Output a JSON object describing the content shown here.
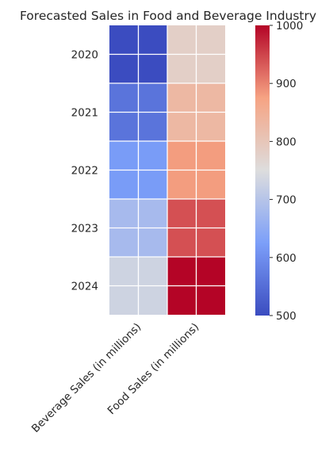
{
  "chart_data": {
    "type": "heatmap",
    "title": "Forecasted Sales in Food and Beverage Industry",
    "xlabel": "",
    "ylabel": "",
    "rows": [
      "2020",
      "2021",
      "2022",
      "2023",
      "2024"
    ],
    "columns": [
      "Beverage Sales (in millions)",
      "Food Sales (in millions)"
    ],
    "values": [
      [
        500,
        780
      ],
      [
        560,
        830
      ],
      [
        620,
        880
      ],
      [
        680,
        940
      ],
      [
        730,
        1000
      ]
    ],
    "colormap": "coolwarm",
    "vmin": 500,
    "vmax": 1000,
    "colorbar_ticks": [
      500,
      600,
      700,
      800,
      900,
      1000
    ],
    "grid": true,
    "colorbar_placement": "right"
  }
}
